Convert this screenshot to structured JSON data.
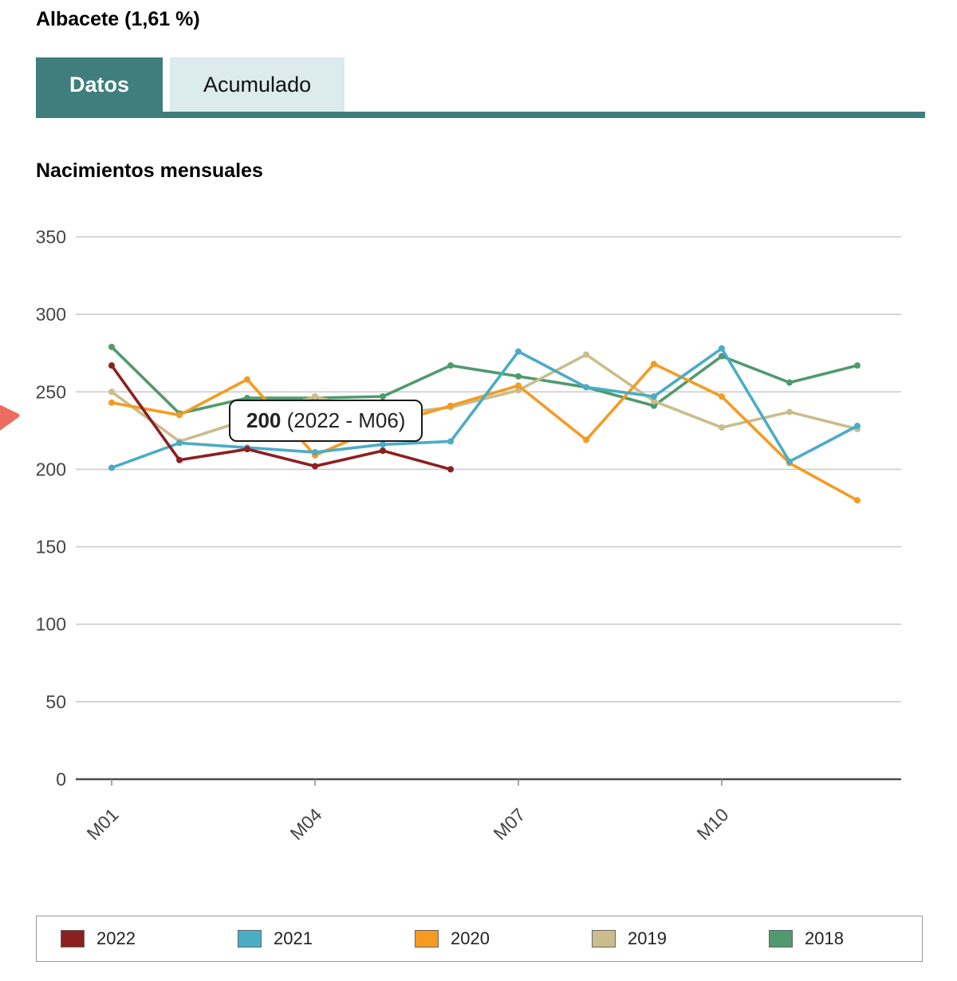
{
  "page": {
    "title": "Albacete (1,61 %)",
    "tabs": [
      {
        "label": "Datos",
        "active": true
      },
      {
        "label": "Acumulado",
        "active": false
      }
    ],
    "chart_title": "Nacimientos mensuales"
  },
  "tooltip": {
    "value": "200",
    "rest": " (2022 - M06)"
  },
  "colors": {
    "accent": "#3f7e7c",
    "tab_inactive_bg": "#dcebeb",
    "gridline": "#cccccc",
    "axis": "#4d4d4d",
    "tick_label": "#444444",
    "pointer_red": "#ed6c60"
  },
  "icons": {
    "pointer": "red-cursor-arrow"
  },
  "chart_data": {
    "type": "line",
    "title": "Nacimientos mensuales",
    "x": [
      "M01",
      "M02",
      "M03",
      "M04",
      "M05",
      "M06",
      "M07",
      "M08",
      "M09",
      "M10",
      "M11",
      "M12"
    ],
    "x_ticks_shown": [
      "M01",
      "M04",
      "M07",
      "M10"
    ],
    "ylim": [
      0,
      350
    ],
    "yticks": [
      0,
      50,
      100,
      150,
      200,
      250,
      300,
      350
    ],
    "grid": true,
    "legend_position": "bottom",
    "series": [
      {
        "name": "2022",
        "color": "#8c2020",
        "values": [
          267,
          206,
          213,
          202,
          212,
          200,
          null,
          null,
          null,
          null,
          null,
          null
        ]
      },
      {
        "name": "2021",
        "color": "#4bacc6",
        "values": [
          201,
          217,
          214,
          211,
          216,
          218,
          276,
          253,
          247,
          278,
          205,
          228
        ]
      },
      {
        "name": "2020",
        "color": "#f59b22",
        "values": [
          243,
          235,
          258,
          209,
          228,
          241,
          254,
          219,
          268,
          247,
          204,
          180
        ]
      },
      {
        "name": "2019",
        "color": "#c9bd8c",
        "values": [
          250,
          218,
          232,
          247,
          235,
          240,
          251,
          274,
          244,
          227,
          237,
          226
        ]
      },
      {
        "name": "2018",
        "color": "#4f9a6e",
        "values": [
          279,
          236,
          246,
          246,
          247,
          267,
          260,
          253,
          241,
          273,
          256,
          267
        ]
      }
    ]
  }
}
